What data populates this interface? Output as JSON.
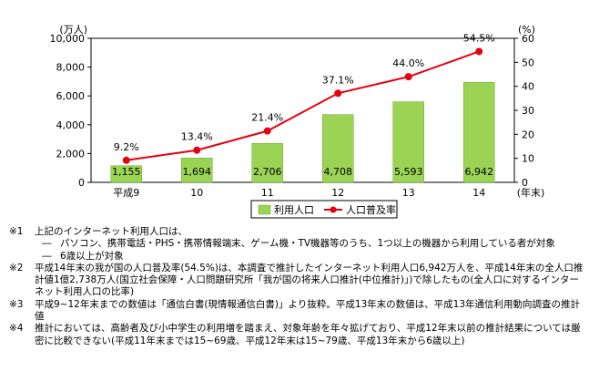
{
  "chart_data": {
    "type": "bar+line",
    "categories": [
      "平成9",
      "10",
      "11",
      "12",
      "13",
      "14"
    ],
    "x_unit_label": "(年末)",
    "series": [
      {
        "name": "利用人口",
        "type": "bar",
        "axis": "left",
        "color": "#9bd455",
        "values": [
          1155,
          1694,
          2706,
          4708,
          5593,
          6942
        ],
        "value_labels": [
          "1,155",
          "1,694",
          "2,706",
          "4,708",
          "5,593",
          "6,942"
        ]
      },
      {
        "name": "人口普及率",
        "type": "line",
        "axis": "right",
        "color": "#e60012",
        "values": [
          9.2,
          13.4,
          21.4,
          37.1,
          44.0,
          54.5
        ],
        "value_labels": [
          "9.2%",
          "13.4%",
          "21.4%",
          "37.1%",
          "44.0%",
          "54.5%"
        ]
      }
    ],
    "left_axis": {
      "unit": "(万人)",
      "min": 0,
      "max": 10000,
      "ticks": [
        0,
        2000,
        4000,
        6000,
        8000,
        10000
      ],
      "tick_labels": [
        "0",
        "2,000",
        "4,000",
        "6,000",
        "8,000",
        "10,000"
      ]
    },
    "right_axis": {
      "unit": "(%)",
      "min": 0,
      "max": 60,
      "ticks": [
        0,
        10,
        20,
        30,
        40,
        50,
        60
      ],
      "tick_labels": [
        "0",
        "10",
        "20",
        "30",
        "40",
        "50",
        "60"
      ]
    },
    "grid": false,
    "legend_position": "bottom-right",
    "legend": [
      {
        "label": "利用人口",
        "marker": "bar"
      },
      {
        "label": "人口普及率",
        "marker": "line-dot"
      }
    ]
  },
  "notes": [
    {
      "mark": "※1",
      "text": "上記のインターネット利用人口は、",
      "items": [
        {
          "dash": "―",
          "text": "パソコン、携帯電話・PHS・携帯情報端末、ゲーム機・TV機器等のうち、1つ以上の機器から利用している者が対象"
        },
        {
          "dash": "―",
          "text": "6歳以上が対象"
        }
      ]
    },
    {
      "mark": "※2",
      "text": "平成14年末の我が国の人口普及率(54.5%)は、本調査で推計したインターネット利用人口6,942万人を、平成14年末の全人口推計値1億2,738万人(国立社会保障・人口問題研究所「我が国の将来人口推計(中位推計)」)で除したもの(全人口に対するインターネット利用人口の比率)",
      "items": []
    },
    {
      "mark": "※3",
      "text": "平成9~12年末までの数値は「通信白書(現情報通信白書)」より抜粋。平成13年末の数値は、平成13年通信利用動向調査の推計値",
      "items": []
    },
    {
      "mark": "※4",
      "text": "推計においては、高齢者及び小中学生の利用増を踏まえ、対象年齢を年々拡げており、平成12年末以前の推計結果については厳密に比較できない(平成11年末までは15~69歳、平成12年末は15~79歳、平成13年末から6歳以上)",
      "items": []
    }
  ]
}
